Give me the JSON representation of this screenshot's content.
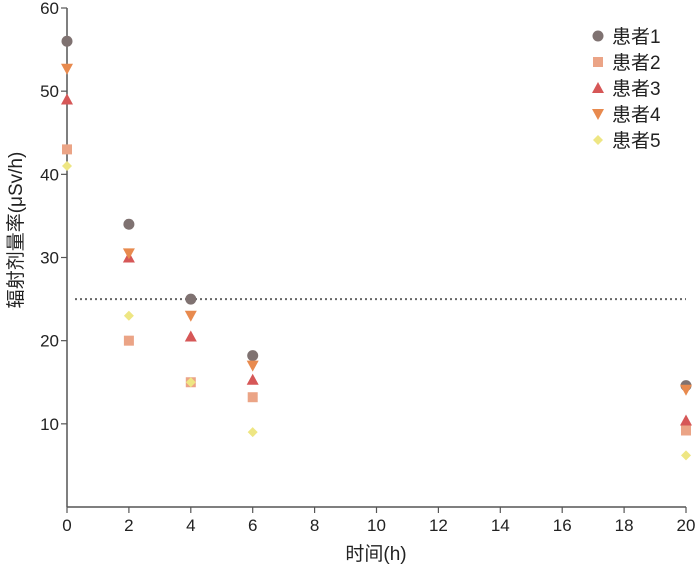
{
  "chart_data": {
    "type": "scatter",
    "title": "",
    "xlabel": "时间(h)",
    "ylabel": "辐射剂量率(μSv/h)",
    "x": [
      0,
      2,
      4,
      6,
      20
    ],
    "xlim": [
      0,
      20
    ],
    "ylim": [
      0,
      60
    ],
    "xticks": [
      "0",
      "2",
      "4",
      "6",
      "8",
      "10",
      "12",
      "14",
      "16",
      "18",
      "20"
    ],
    "yticks": [
      "10",
      "20",
      "30",
      "40",
      "50",
      "60"
    ],
    "reference_line": {
      "y": 25,
      "style": "dotted",
      "color": "#666666"
    },
    "grid": false,
    "legend_position": "top-right",
    "series": [
      {
        "name": "患者1",
        "marker": "circle",
        "color": "#7f7271",
        "values": [
          56,
          34,
          25,
          18.2,
          14.6
        ]
      },
      {
        "name": "患者2",
        "marker": "square",
        "color": "#eba486",
        "values": [
          43,
          20,
          15,
          13.2,
          9.2
        ]
      },
      {
        "name": "患者3",
        "marker": "triangle-up",
        "color": "#d65757",
        "values": [
          49,
          30,
          20.5,
          15.3,
          10.4
        ]
      },
      {
        "name": "患者4",
        "marker": "triangle-down",
        "color": "#e88a4e",
        "values": [
          52.7,
          30.5,
          23,
          17,
          14.1
        ]
      },
      {
        "name": "患者5",
        "marker": "diamond",
        "color": "#eee683",
        "values": [
          41,
          23,
          15,
          9,
          6.2
        ]
      }
    ]
  }
}
